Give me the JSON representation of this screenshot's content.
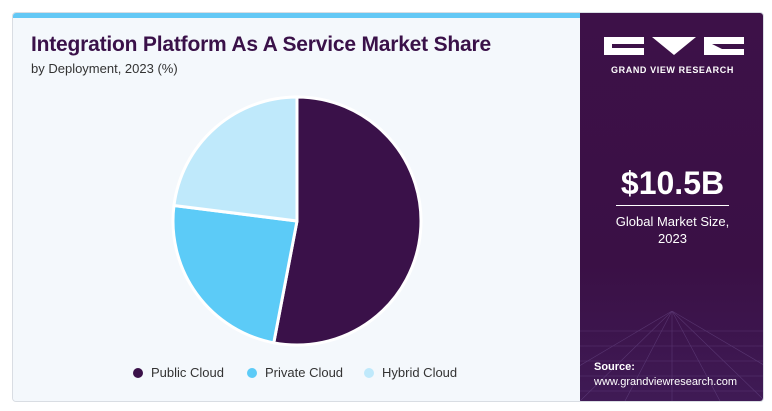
{
  "header": {
    "title": "Integration Platform As A Service Market Share",
    "subtitle": "by Deployment, 2023 (%)"
  },
  "chart_data": {
    "type": "pie",
    "title": "Integration Platform As A Service Market Share",
    "subtitle": "by Deployment, 2023 (%)",
    "slices": [
      {
        "name": "Public Cloud",
        "value": 53,
        "color": "#3a1149"
      },
      {
        "name": "Private Cloud",
        "value": 24,
        "color": "#5ccbf7"
      },
      {
        "name": "Hybrid Cloud",
        "value": 23,
        "color": "#bfe9fb"
      }
    ],
    "legend_position": "bottom",
    "start_angle_deg": 0,
    "direction": "clockwise"
  },
  "sidebar": {
    "brand": "GRAND VIEW RESEARCH",
    "market_value": "$10.5B",
    "market_label_line1": "Global Market Size,",
    "market_label_line2": "2023",
    "source_label": "Source:",
    "source_url": "www.grandviewresearch.com"
  },
  "colors": {
    "accent_dark": "#3a1149",
    "stripe": "#63c8f5",
    "panel_bg": "#f4f8fc"
  }
}
